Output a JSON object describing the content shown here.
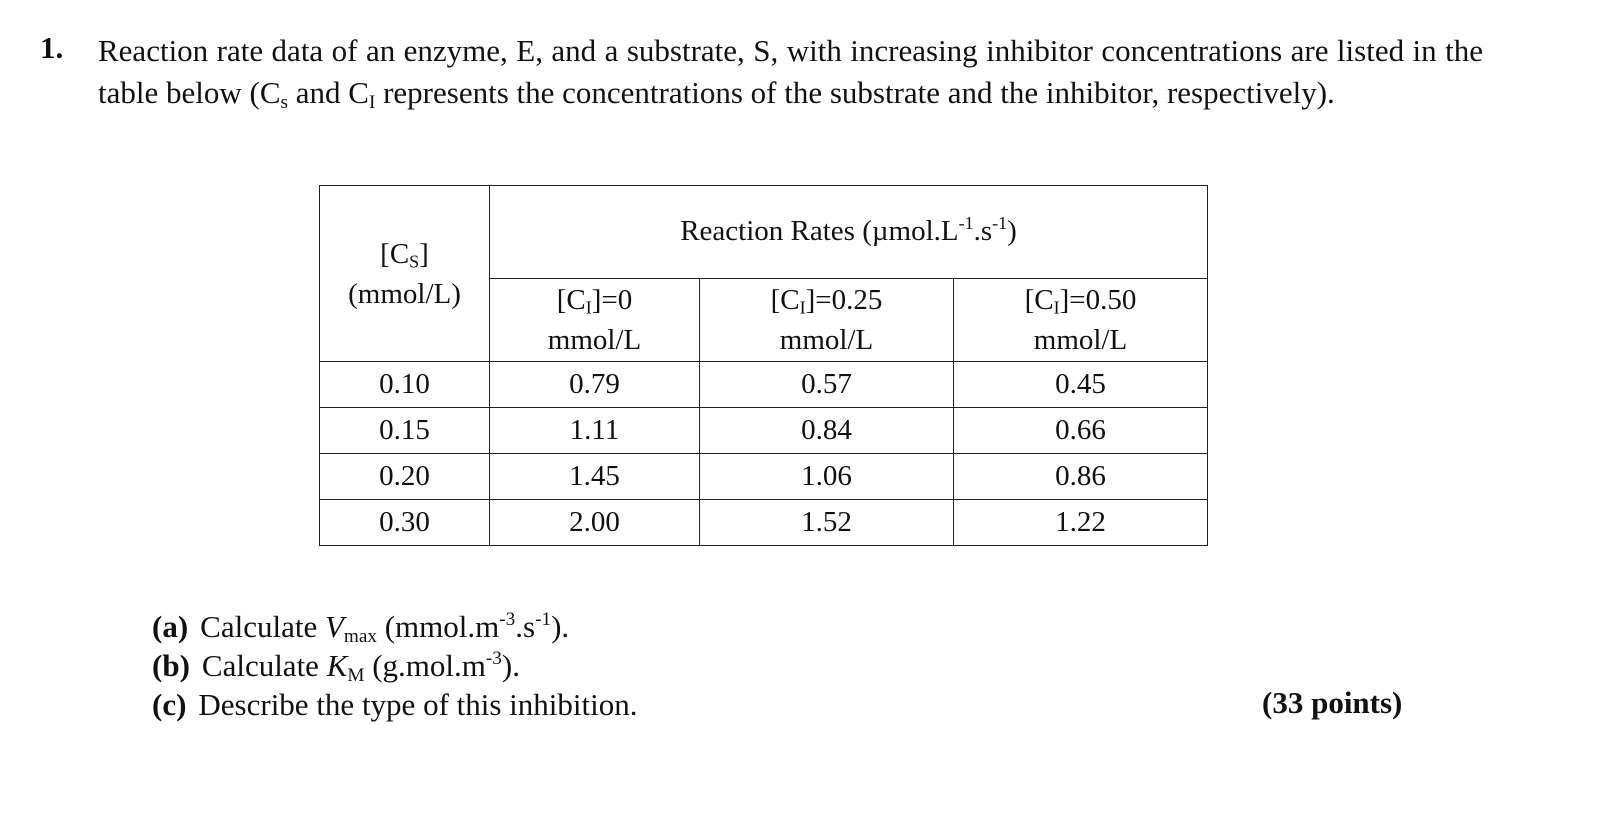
{
  "problem": {
    "number": "1.",
    "text_part1": "Reaction rate data of an enzyme, E, and a substrate, S, with increasing inhibitor concentrations are listed in the table below (C",
    "sub_s": "s",
    "text_part2": " and C",
    "sub_i": "I",
    "text_part3": " represents the concentrations of the substrate and the inhibitor, respectively)."
  },
  "table": {
    "cs_header": {
      "bracket_open": "[C",
      "sub": "S",
      "bracket_close": "]",
      "unit": "(mmol/L)"
    },
    "group_header": {
      "prefix": "Reaction Rates (µmol.L",
      "exp1": "-1",
      "mid": ".s",
      "exp2": "-1",
      "suffix": ")"
    },
    "inhibitor_columns": [
      {
        "prefix": "[C",
        "sub": "I",
        "value": "]=0",
        "unit": "mmol/L"
      },
      {
        "prefix": "[C",
        "sub": "I",
        "value": "]=0.25",
        "unit": "mmol/L"
      },
      {
        "prefix": "[C",
        "sub": "I",
        "value": "]=0.50",
        "unit": "mmol/L"
      }
    ],
    "rows": [
      {
        "cs": "0.10",
        "r0": "0.79",
        "r25": "0.57",
        "r50": "0.45"
      },
      {
        "cs": "0.15",
        "r0": "1.11",
        "r25": "0.84",
        "r50": "0.66"
      },
      {
        "cs": "0.20",
        "r0": "1.45",
        "r25": "1.06",
        "r50": "0.86"
      },
      {
        "cs": "0.30",
        "r0": "2.00",
        "r25": "1.52",
        "r50": "1.22"
      }
    ]
  },
  "questions": {
    "a": {
      "letter": "(a)",
      "text1": "Calculate ",
      "var": "V",
      "var_sub": "max",
      "text2": " (mmol.m",
      "exp1": "-3",
      "text3": ".s",
      "exp2": "-1",
      "text4": ")."
    },
    "b": {
      "letter": "(b)",
      "text1": "Calculate ",
      "var": "K",
      "var_sub": "M",
      "text2": " (g.mol.m",
      "exp1": "-3",
      "text3": ")."
    },
    "c": {
      "letter": "(c)",
      "text1": "Describe the type of this inhibition."
    }
  },
  "points": "(33 points)"
}
